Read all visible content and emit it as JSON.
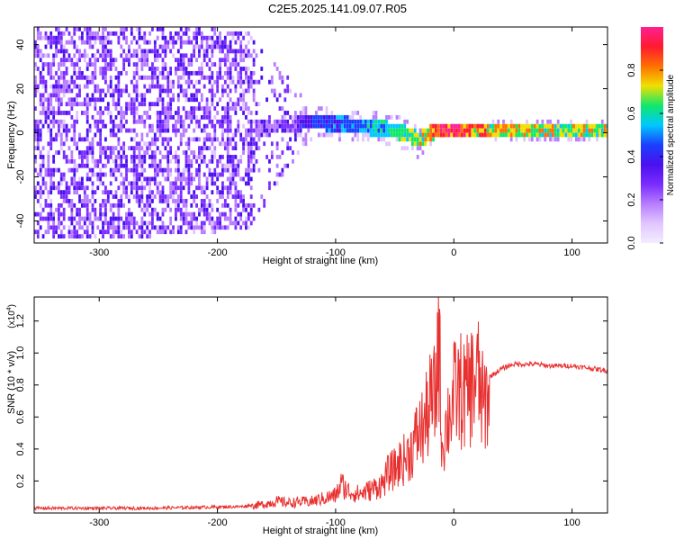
{
  "title": "C2E5.2025.141.09.07.R05",
  "colors": {
    "series": "#e83030",
    "cmap": [
      "#f4ecff",
      "#e0c6ff",
      "#b77cff",
      "#7a2cff",
      "#4a10ee",
      "#1a40ff",
      "#00c8ff",
      "#10e86a",
      "#f0e000",
      "#ff7000",
      "#ff1a30",
      "#ff2090"
    ]
  },
  "chart_data": [
    {
      "type": "heatmap",
      "xlabel": "Height of straight line (km)",
      "ylabel": "Frequency (Hz)",
      "xlim": [
        -355,
        130
      ],
      "ylim": [
        -50,
        48
      ],
      "xticks": [
        -300,
        -200,
        -100,
        0,
        100
      ],
      "yticks": [
        -40,
        -20,
        0,
        20,
        40
      ],
      "colorbar": {
        "label": "Normalized spectral amplitude",
        "range": [
          0,
          1
        ],
        "ticks": [
          "0.0",
          "0.2",
          "0.4",
          "0.6",
          "0.8"
        ]
      },
      "profile": [
        {
          "x": -355,
          "center_hz": 0,
          "width_hz": 97,
          "amplitude": 0.15
        },
        {
          "x": -270,
          "center_hz": 0,
          "width_hz": 97,
          "amplitude": 0.2
        },
        {
          "x": -175,
          "center_hz": 0,
          "width_hz": 90,
          "amplitude": 0.22
        },
        {
          "x": -140,
          "center_hz": 3,
          "width_hz": 40,
          "amplitude": 0.3
        },
        {
          "x": -120,
          "center_hz": 4,
          "width_hz": 14,
          "amplitude": 0.4
        },
        {
          "x": -80,
          "center_hz": 2,
          "width_hz": 14,
          "amplitude": 0.5
        },
        {
          "x": -50,
          "center_hz": 0,
          "width_hz": 14,
          "amplitude": 0.6
        },
        {
          "x": -30,
          "center_hz": -4,
          "width_hz": 18,
          "amplitude": 0.65
        },
        {
          "x": -15,
          "center_hz": 0,
          "width_hz": 6,
          "amplitude": 0.85
        },
        {
          "x": 0,
          "center_hz": 0,
          "width_hz": 6,
          "amplitude": 0.9
        },
        {
          "x": 30,
          "center_hz": 0,
          "width_hz": 8,
          "amplitude": 0.72
        },
        {
          "x": 130,
          "center_hz": 0,
          "width_hz": 8,
          "amplitude": 0.68
        }
      ]
    },
    {
      "type": "line",
      "xlabel": "Height of straight line (km)",
      "ylabel": "SNR (10 * v/v)",
      "yscale_label": "(x10",
      "yscale_exp": "4",
      "ylabel_suffix": ")",
      "xlim": [
        -355,
        130
      ],
      "ylim": [
        0,
        1.35
      ],
      "xticks": [
        -300,
        -200,
        -100,
        0,
        100
      ],
      "yticks": [
        0.2,
        0.4,
        0.6,
        0.8,
        1.0,
        1.2
      ],
      "series": [
        {
          "x": [
            -355,
            -330,
            -300,
            -260,
            -220,
            -180,
            -170,
            -160,
            -150,
            -140,
            -120,
            -100,
            -95,
            -90,
            -80,
            -70,
            -60,
            -55,
            -50,
            -45,
            -40,
            -35,
            -30,
            -25,
            -20,
            -15,
            -13,
            -10,
            -5,
            0,
            5,
            10,
            15,
            20,
            25,
            30,
            40,
            50,
            60,
            70,
            80,
            90,
            100,
            110,
            120,
            130
          ],
          "y": [
            0.03,
            0.03,
            0.03,
            0.03,
            0.035,
            0.04,
            0.05,
            0.06,
            0.08,
            0.07,
            0.08,
            0.12,
            0.2,
            0.15,
            0.13,
            0.16,
            0.2,
            0.28,
            0.3,
            0.35,
            0.38,
            0.45,
            0.55,
            0.6,
            0.75,
            0.8,
            1.32,
            0.45,
            0.65,
            0.8,
            0.85,
            0.8,
            0.88,
            0.95,
            0.72,
            0.85,
            0.9,
            0.93,
            0.93,
            0.93,
            0.92,
            0.92,
            0.92,
            0.91,
            0.9,
            0.89
          ]
        }
      ]
    }
  ],
  "top_chart": {
    "xlabel": "Height of straight line (km)",
    "ylabel": "Frequency (Hz)",
    "colorbar_label": "Normalized spectral amplitude"
  },
  "bottom_chart": {
    "xlabel": "Height of straight line (km)",
    "ylabel": "SNR (10 * v/v)"
  }
}
